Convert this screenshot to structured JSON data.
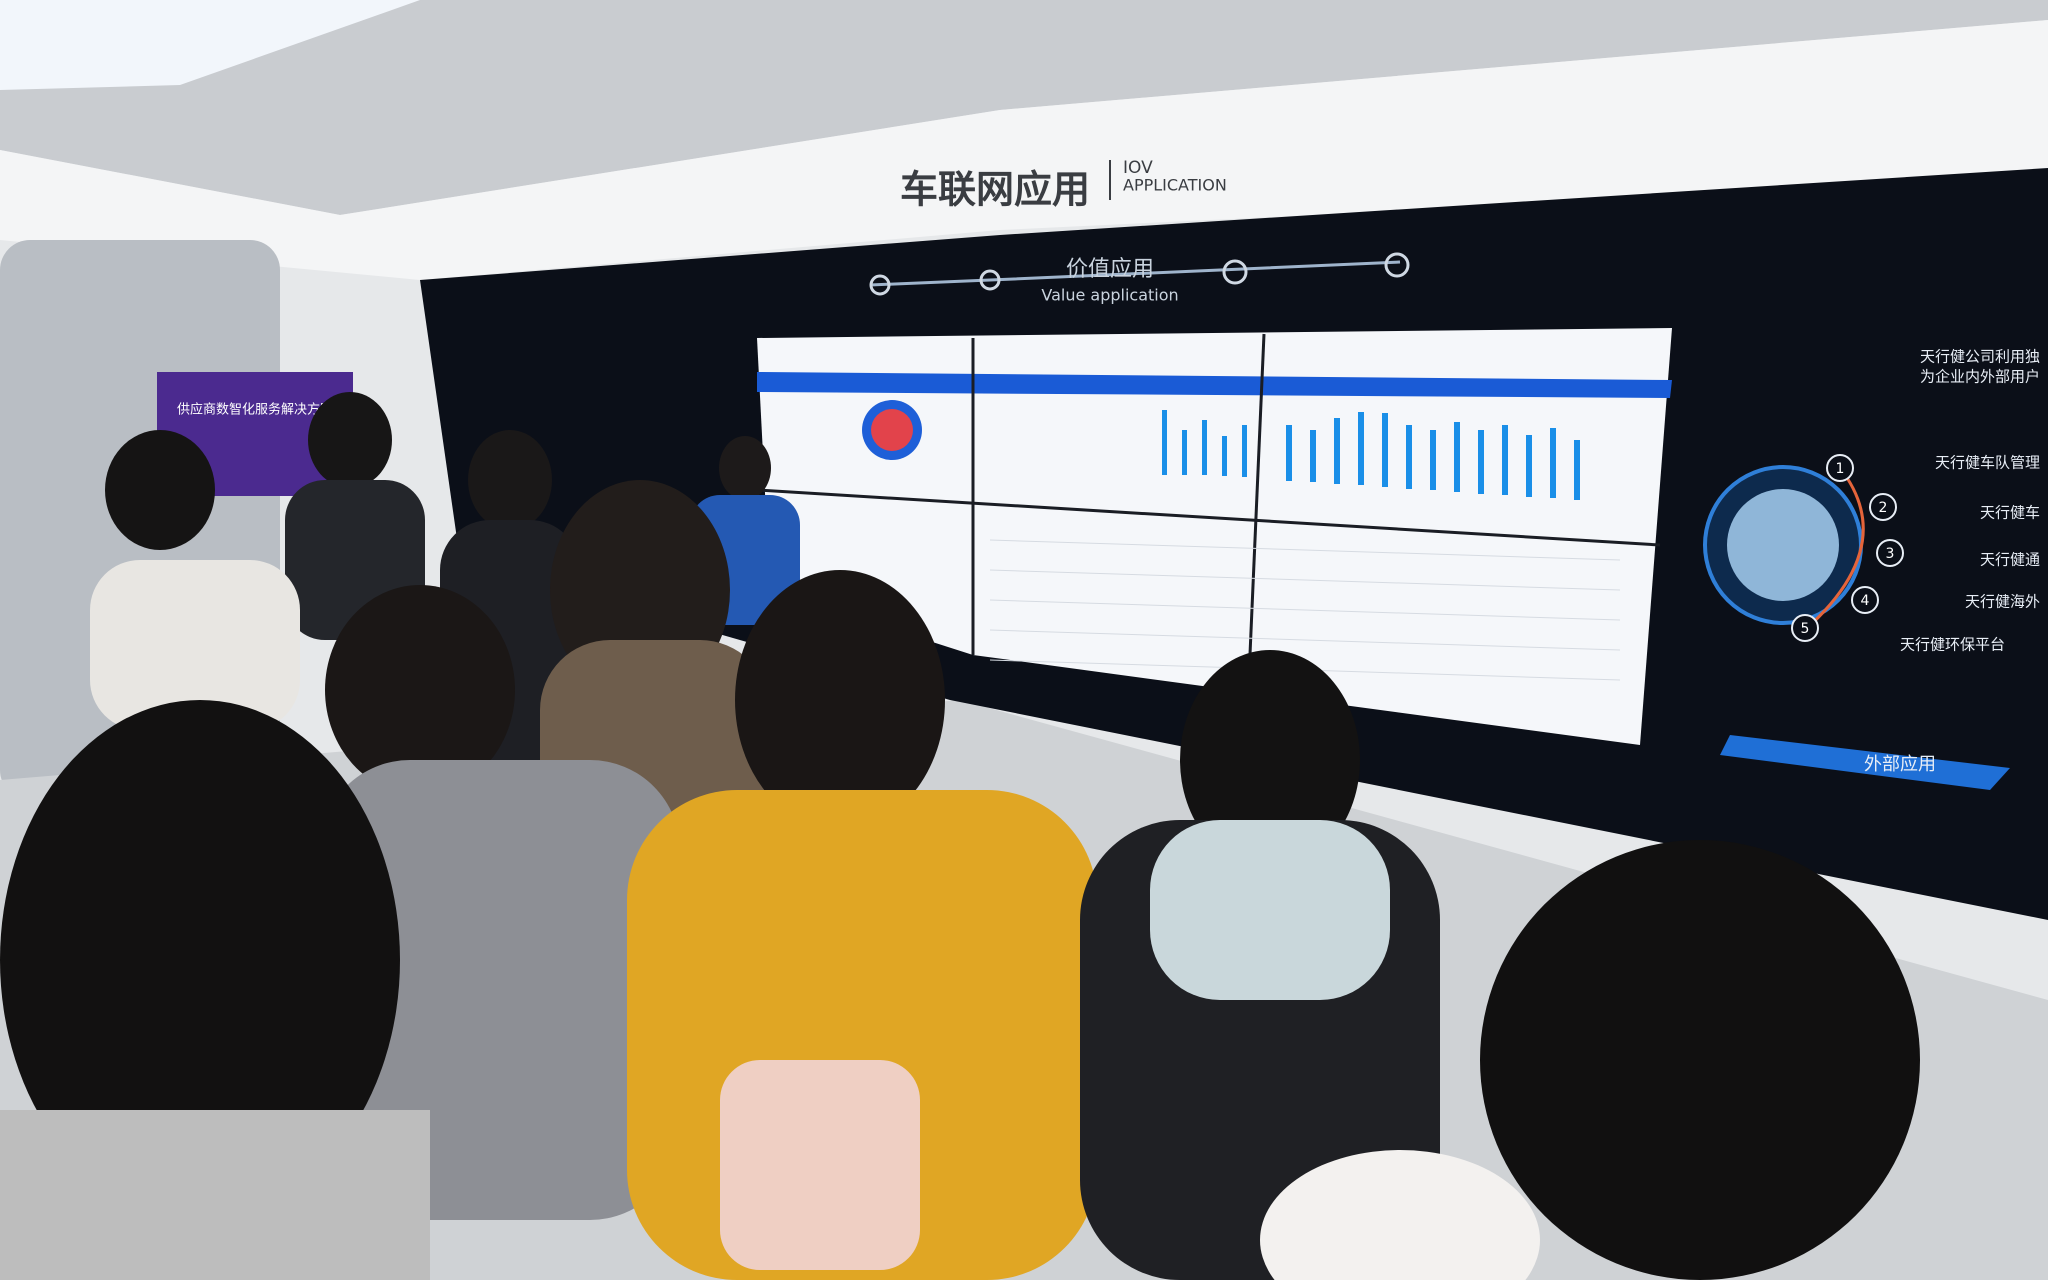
{
  "sign": {
    "title": "车联网应用",
    "en_top": "IOV",
    "en_bottom": "APPLICATION"
  },
  "wall": {
    "heading": "价值应用",
    "subheading": "Value application"
  },
  "poster": {
    "title": "供应商数智化服务解决方案"
  },
  "side_panel": {
    "intro_1": "天行健公司利用独",
    "intro_2": "为企业内外部用户",
    "items": [
      {
        "number": "1",
        "label": "天行健车队管理"
      },
      {
        "number": "2",
        "label": "天行健车"
      },
      {
        "number": "3",
        "label": "天行健通"
      },
      {
        "number": "4",
        "label": "天行健海外"
      },
      {
        "number": "5",
        "label": "天行健环保平台"
      }
    ],
    "footer": "外部应用"
  }
}
